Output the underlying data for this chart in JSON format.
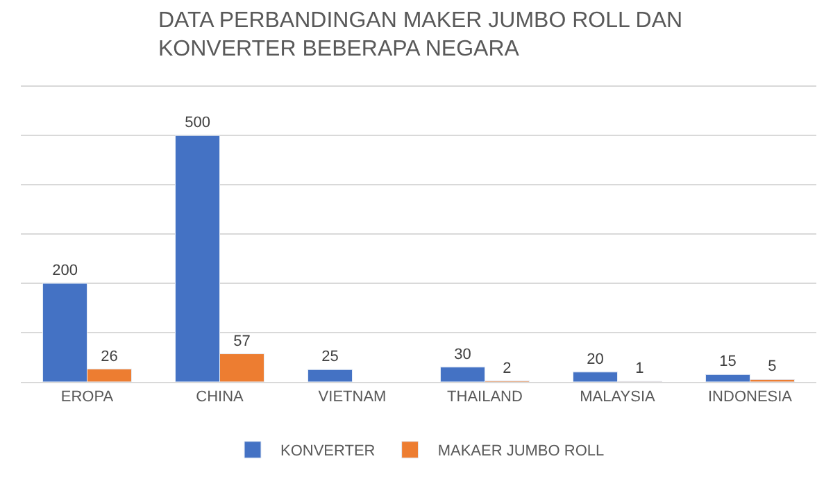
{
  "chart_data": {
    "type": "bar",
    "title": "DATA PERBANDINGAN MAKER JUMBO ROLL DAN KONVERTER BEBERAPA NEGARA",
    "categories": [
      "EROPA",
      "CHINA",
      "VIETNAM",
      "THAILAND",
      "MALAYSIA",
      "INDONESIA"
    ],
    "series": [
      {
        "name": "KONVERTER",
        "color": "#4472c4",
        "values": [
          200,
          500,
          25,
          30,
          20,
          15
        ]
      },
      {
        "name": "MAKAER JUMBO ROLL",
        "color": "#ed7d31",
        "values": [
          26,
          57,
          null,
          2,
          1,
          5
        ]
      }
    ],
    "yticks": [
      {
        "value": 0,
        "label": null
      },
      {
        "value": 100,
        "label": null
      },
      {
        "value": 200,
        "label": null
      },
      {
        "value": 300,
        "label": null
      },
      {
        "value": 400,
        "label": null
      },
      {
        "value": 500,
        "label": null
      },
      {
        "value": 600,
        "label": null
      }
    ],
    "tick_labels": "x",
    "grid": "y",
    "legend": "bottom",
    "data_labels": true
  }
}
